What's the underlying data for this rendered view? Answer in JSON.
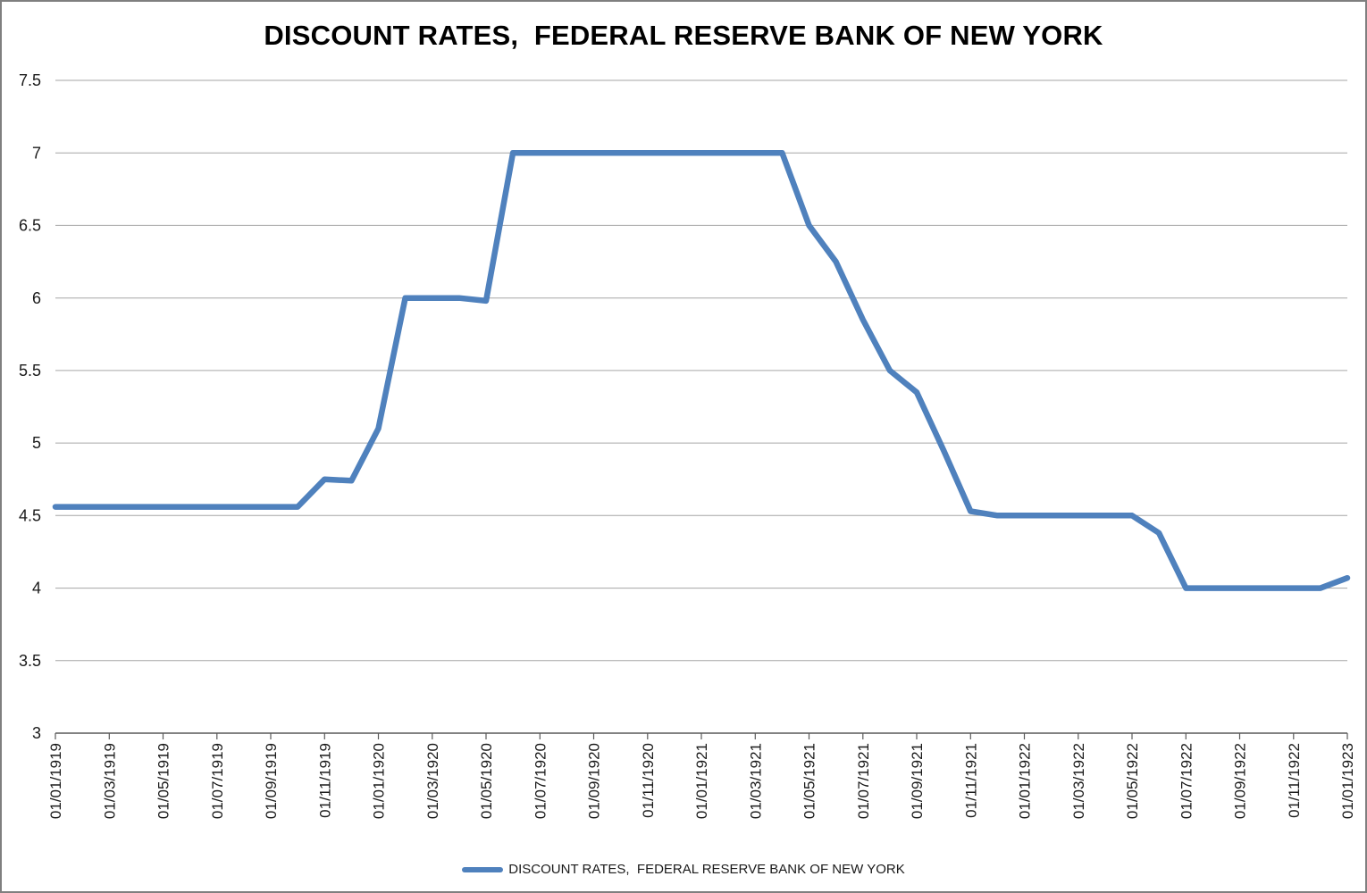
{
  "figure": {
    "title": "DISCOUNT RATES,  FEDERAL RESERVE BANK OF NEW YORK",
    "legend_label": "DISCOUNT RATES,  FEDERAL RESERVE BANK OF NEW YORK"
  },
  "chart_data": {
    "type": "line",
    "title": "DISCOUNT RATES,  FEDERAL RESERVE BANK OF NEW YORK",
    "xlabel": "",
    "ylabel": "",
    "ylim": [
      3,
      7.5
    ],
    "y_ticks": [
      3,
      3.5,
      4,
      4.5,
      5,
      5.5,
      6,
      6.5,
      7,
      7.5
    ],
    "grid": true,
    "legend_position": "bottom",
    "x_label_every": 2,
    "colors": {
      "grid": "#A6A6A6",
      "axis": "#595959",
      "text": "#1a1a1a"
    },
    "x": [
      "01/01/1919",
      "01/02/1919",
      "01/03/1919",
      "01/04/1919",
      "01/05/1919",
      "01/06/1919",
      "01/07/1919",
      "01/08/1919",
      "01/09/1919",
      "01/10/1919",
      "01/11/1919",
      "01/12/1919",
      "01/01/1920",
      "01/02/1920",
      "01/03/1920",
      "01/04/1920",
      "01/05/1920",
      "01/06/1920",
      "01/07/1920",
      "01/08/1920",
      "01/09/1920",
      "01/10/1920",
      "01/11/1920",
      "01/12/1920",
      "01/01/1921",
      "01/02/1921",
      "01/03/1921",
      "01/04/1921",
      "01/05/1921",
      "01/06/1921",
      "01/07/1921",
      "01/08/1921",
      "01/09/1921",
      "01/10/1921",
      "01/11/1921",
      "01/12/1921",
      "01/01/1922",
      "01/02/1922",
      "01/03/1922",
      "01/04/1922",
      "01/05/1922",
      "01/06/1922",
      "01/07/1922",
      "01/08/1922",
      "01/09/1922",
      "01/10/1922",
      "01/11/1922",
      "01/12/1922",
      "01/01/1923"
    ],
    "series": [
      {
        "name": "DISCOUNT RATES,  FEDERAL RESERVE BANK OF NEW YORK",
        "color": "#4F81BD",
        "values": [
          4.56,
          4.56,
          4.56,
          4.56,
          4.56,
          4.56,
          4.56,
          4.56,
          4.56,
          4.56,
          4.75,
          4.74,
          5.1,
          6,
          6,
          6,
          5.98,
          7,
          7,
          7,
          7,
          7,
          7,
          7,
          7,
          7,
          7,
          7,
          6.5,
          6.25,
          5.85,
          5.5,
          5.35,
          4.95,
          4.53,
          4.5,
          4.5,
          4.5,
          4.5,
          4.5,
          4.5,
          4.38,
          4,
          4,
          4,
          4,
          4,
          4,
          4.07
        ]
      }
    ]
  }
}
